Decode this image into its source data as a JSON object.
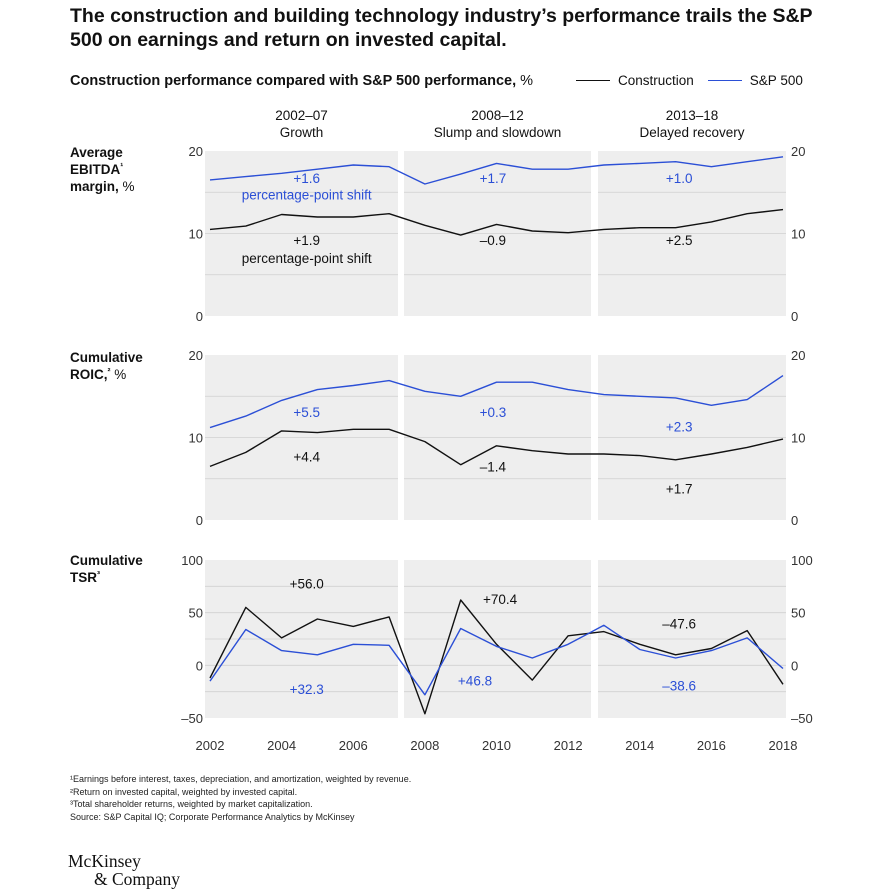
{
  "title": "The construction and building technology industry’s performance trails the S&P 500 on earnings and return on invested capital.",
  "subtitle": "Construction performance compared with S&P 500 performance,",
  "subtitle_unit": "%",
  "legend": [
    {
      "label": "Construction",
      "color": "#111111"
    },
    {
      "label": "S&P 500",
      "color": "#2b4fd6"
    }
  ],
  "periods": [
    {
      "range": "2002–07",
      "name": "Growth"
    },
    {
      "range": "2008–12",
      "name": "Slump and slowdown"
    },
    {
      "range": "2013–18",
      "name": "Delayed recovery"
    }
  ],
  "chart_data": [
    {
      "type": "line",
      "title": "Average EBITDA¹ margin, %",
      "x": [
        2002,
        2003,
        2004,
        2005,
        2006,
        2007,
        2008,
        2009,
        2010,
        2011,
        2012,
        2013,
        2014,
        2015,
        2016,
        2017,
        2018
      ],
      "ylim": [
        0,
        20
      ],
      "yticks": [
        "0",
        "10",
        "20"
      ],
      "series": [
        {
          "name": "Construction",
          "values": [
            10.5,
            10.9,
            12.3,
            12.0,
            12.0,
            12.4,
            11.0,
            9.8,
            11.1,
            10.3,
            10.1,
            10.5,
            10.7,
            10.7,
            11.4,
            12.4,
            12.9
          ]
        },
        {
          "name": "S&P 500",
          "values": [
            16.5,
            16.9,
            17.3,
            17.8,
            18.3,
            18.1,
            16.0,
            17.2,
            18.5,
            17.8,
            17.8,
            18.3,
            18.5,
            18.7,
            18.1,
            18.7,
            19.3
          ]
        }
      ],
      "annotations": [
        {
          "text": "+1.6",
          "series": "S&P 500",
          "x": 2004.7,
          "y": 16.1
        },
        {
          "text": "percentage-point shift",
          "series": "S&P 500",
          "x": 2004.7,
          "y": 14.1
        },
        {
          "text": "+1.7",
          "series": "S&P 500",
          "x": 2009.9,
          "y": 16.1
        },
        {
          "text": "+1.0",
          "series": "S&P 500",
          "x": 2015.1,
          "y": 16.1
        },
        {
          "text": "+1.9",
          "series": "Construction",
          "x": 2004.7,
          "y": 8.6
        },
        {
          "text": "percentage-point shift",
          "series": "Construction",
          "x": 2004.7,
          "y": 6.4
        },
        {
          "text": "–0.9",
          "series": "Construction",
          "x": 2009.9,
          "y": 8.6
        },
        {
          "text": "+2.5",
          "series": "Construction",
          "x": 2015.1,
          "y": 8.6
        }
      ]
    },
    {
      "type": "line",
      "title": "Cumulative ROIC,² %",
      "x": [
        2002,
        2003,
        2004,
        2005,
        2006,
        2007,
        2008,
        2009,
        2010,
        2011,
        2012,
        2013,
        2014,
        2015,
        2016,
        2017,
        2018
      ],
      "ylim": [
        0,
        20
      ],
      "yticks": [
        "0",
        "10",
        "20"
      ],
      "series": [
        {
          "name": "Construction",
          "values": [
            6.5,
            8.2,
            10.8,
            10.6,
            11.0,
            11.0,
            9.5,
            6.7,
            9.0,
            8.4,
            8.0,
            8.0,
            7.8,
            7.3,
            8.0,
            8.8,
            9.8
          ]
        },
        {
          "name": "S&P 500",
          "values": [
            11.2,
            12.6,
            14.5,
            15.8,
            16.3,
            16.9,
            15.6,
            15.0,
            16.7,
            16.7,
            15.8,
            15.2,
            15.0,
            14.8,
            13.9,
            14.6,
            17.5
          ]
        }
      ],
      "annotations": [
        {
          "text": "+5.5",
          "series": "S&P 500",
          "x": 2004.7,
          "y": 12.5
        },
        {
          "text": "+0.3",
          "series": "S&P 500",
          "x": 2009.9,
          "y": 12.5
        },
        {
          "text": "+2.3",
          "series": "S&P 500",
          "x": 2015.1,
          "y": 10.7
        },
        {
          "text": "+4.4",
          "series": "Construction",
          "x": 2004.7,
          "y": 7.1
        },
        {
          "text": "–1.4",
          "series": "Construction",
          "x": 2009.9,
          "y": 5.9
        },
        {
          "text": "+1.7",
          "series": "Construction",
          "x": 2015.1,
          "y": 3.2
        }
      ]
    },
    {
      "type": "line",
      "title": "Cumulative TSR³",
      "x": [
        2002,
        2003,
        2004,
        2005,
        2006,
        2007,
        2008,
        2009,
        2010,
        2011,
        2012,
        2013,
        2014,
        2015,
        2016,
        2017,
        2018
      ],
      "ylim": [
        -50,
        100
      ],
      "yticks": [
        "–50",
        "0",
        "50",
        "100"
      ],
      "series": [
        {
          "name": "Construction",
          "values": [
            -12,
            55,
            26,
            44,
            37,
            46,
            -46,
            62,
            20,
            -14,
            28,
            32,
            20,
            10,
            16,
            33,
            -18
          ]
        },
        {
          "name": "S&P 500",
          "values": [
            -15,
            34,
            14,
            10,
            20,
            19,
            -28,
            35,
            18,
            7,
            20,
            38,
            15,
            7,
            14,
            26,
            -3
          ]
        }
      ],
      "annotations": [
        {
          "text": "+56.0",
          "series": "Construction",
          "x": 2004.7,
          "y": 73
        },
        {
          "text": "+70.4",
          "series": "Construction",
          "x": 2010.1,
          "y": 58
        },
        {
          "text": "–47.6",
          "series": "Construction",
          "x": 2015.1,
          "y": 35
        },
        {
          "text": "+32.3",
          "series": "S&P 500",
          "x": 2004.7,
          "y": -27
        },
        {
          "text": "+46.8",
          "series": "S&P 500",
          "x": 2009.4,
          "y": -19
        },
        {
          "text": "–38.6",
          "series": "S&P 500",
          "x": 2015.1,
          "y": -24
        }
      ]
    }
  ],
  "x_tick_labels": [
    "2002",
    "2004",
    "2006",
    "2008",
    "2010",
    "2012",
    "2014",
    "2016",
    "2018"
  ],
  "footnotes": [
    "¹Earnings before interest, taxes, depreciation, and amortization, weighted by revenue.",
    "²Return on invested capital, weighted by invested capital.",
    "³Total shareholder returns, weighted by market capitalization.",
    " Source: S&P Capital IQ; Corporate Performance Analytics by McKinsey"
  ],
  "logo": {
    "line1": "McKinsey",
    "line2": "& Company"
  },
  "colors": {
    "construction": "#111111",
    "sp500": "#2b4fd6",
    "panel_bg": "#eeeeee",
    "grid": "#d0d0d0"
  }
}
